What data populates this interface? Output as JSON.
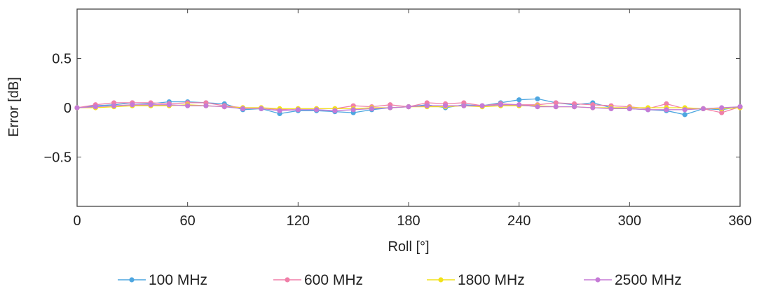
{
  "chart_data": {
    "type": "line",
    "xlabel": "Roll [°]",
    "ylabel": "Error [dB]",
    "xlim": [
      0,
      360
    ],
    "ylim": [
      -1,
      1
    ],
    "xticks": [
      0,
      60,
      120,
      180,
      240,
      300,
      360
    ],
    "xtick_labels": [
      "0",
      "60",
      "120",
      "180",
      "240",
      "300",
      "360"
    ],
    "yticks": [
      0.5,
      0,
      -0.5
    ],
    "ytick_labels": [
      "0.5",
      "0",
      "−0.5"
    ],
    "grid": false,
    "legend": "bottom",
    "x": [
      0,
      10,
      20,
      30,
      40,
      50,
      60,
      70,
      80,
      90,
      100,
      110,
      120,
      130,
      140,
      150,
      160,
      170,
      180,
      190,
      200,
      210,
      220,
      230,
      240,
      250,
      260,
      270,
      280,
      290,
      300,
      310,
      320,
      330,
      340,
      350,
      360
    ],
    "series": [
      {
        "name": "100 MHz",
        "color": "#4da6e0",
        "values": [
          0,
          0.02,
          0.03,
          0.05,
          0.04,
          0.06,
          0.06,
          0.05,
          0.04,
          -0.02,
          -0.01,
          -0.06,
          -0.03,
          -0.03,
          -0.04,
          -0.05,
          -0.02,
          0,
          0.01,
          0.03,
          0,
          0.03,
          0.02,
          0.05,
          0.08,
          0.09,
          0.05,
          0.03,
          0.05,
          0,
          -0.01,
          -0.02,
          -0.03,
          -0.07,
          -0.01,
          -0.02,
          0.01
        ]
      },
      {
        "name": "600 MHz",
        "color": "#f07fa8",
        "values": [
          0,
          0.03,
          0.05,
          0.05,
          0.05,
          0.04,
          0.05,
          0.05,
          0.02,
          0,
          0,
          -0.02,
          -0.01,
          -0.01,
          -0.01,
          0.02,
          0.01,
          0.03,
          0.01,
          0.05,
          0.04,
          0.05,
          0.02,
          0.04,
          0.03,
          0.03,
          0.05,
          0.04,
          0.03,
          0.02,
          0.01,
          -0.01,
          0.04,
          -0.01,
          -0.01,
          -0.05,
          0.01
        ]
      },
      {
        "name": "1800 MHz",
        "color": "#f2e21a",
        "values": [
          0,
          0,
          0.01,
          0.02,
          0.02,
          0.02,
          0.03,
          0.02,
          0.01,
          0,
          0,
          -0.01,
          -0.01,
          -0.01,
          -0.01,
          -0.01,
          0,
          0,
          0.01,
          0.01,
          0.01,
          0.02,
          0.01,
          0.02,
          0.02,
          0.02,
          0.01,
          0.01,
          0,
          0,
          0,
          0,
          0,
          0,
          -0.01,
          -0.01,
          0
        ]
      },
      {
        "name": "2500 MHz",
        "color": "#c57ad6",
        "values": [
          0,
          0.01,
          0.02,
          0.03,
          0.03,
          0.03,
          0.02,
          0.02,
          0.01,
          -0.01,
          -0.01,
          -0.03,
          -0.02,
          -0.02,
          -0.03,
          -0.02,
          -0.01,
          0,
          0.01,
          0.02,
          0.02,
          0.02,
          0.02,
          0.03,
          0.03,
          0.01,
          0.01,
          0.01,
          0,
          -0.01,
          -0.01,
          -0.02,
          -0.02,
          -0.02,
          -0.01,
          0,
          0.01
        ]
      }
    ]
  }
}
